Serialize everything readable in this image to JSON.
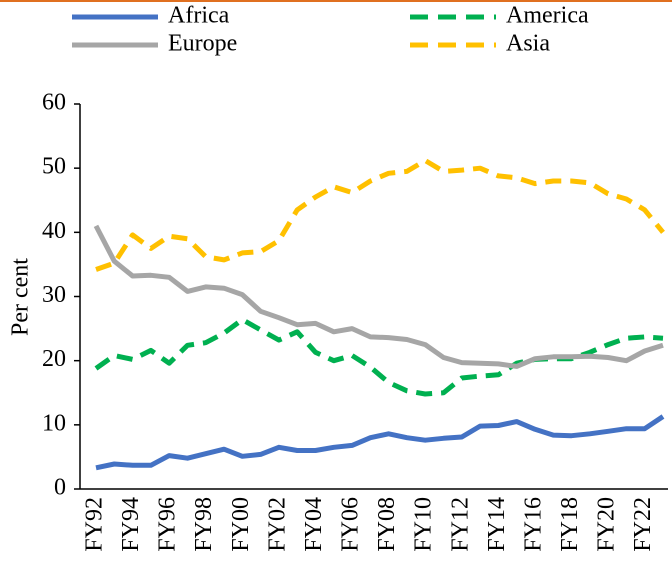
{
  "chart_data": {
    "type": "line",
    "y_label": "Per cent",
    "categories": [
      "FY92",
      null,
      "FY94",
      null,
      "FY96",
      null,
      "FY98",
      null,
      "FY00",
      null,
      "FY02",
      null,
      "FY04",
      null,
      "FY06",
      null,
      "FY08",
      null,
      "FY10",
      null,
      "FY12",
      null,
      "FY14",
      null,
      "FY16",
      null,
      "FY18",
      null,
      "FY20",
      null,
      "FY22",
      null
    ],
    "ylim": [
      0,
      60
    ],
    "yticks": [
      0,
      10,
      20,
      30,
      40,
      50,
      60
    ],
    "series": [
      {
        "name": "Africa",
        "color": "#4472c4",
        "dashed": false,
        "values": [
          3.3,
          3.9,
          3.7,
          3.7,
          5.2,
          4.8,
          5.5,
          6.2,
          5.1,
          5.4,
          6.5,
          6.0,
          6.0,
          6.5,
          6.8,
          8.0,
          8.6,
          8.0,
          7.6,
          7.9,
          8.1,
          9.8,
          9.9,
          10.5,
          9.3,
          8.4,
          8.3,
          8.6,
          9.0,
          9.4,
          9.4,
          11.3
        ]
      },
      {
        "name": "America",
        "color": "#00b050",
        "dashed": true,
        "values": [
          18.8,
          20.8,
          20.2,
          21.6,
          19.6,
          22.4,
          22.8,
          24.3,
          26.4,
          24.8,
          23.2,
          24.5,
          21.3,
          20.0,
          20.8,
          19.0,
          16.6,
          15.3,
          14.8,
          15.0,
          17.3,
          17.6,
          17.8,
          19.6,
          20.2,
          20.3,
          20.3,
          21.3,
          22.5,
          23.5,
          23.7,
          23.5
        ]
      },
      {
        "name": "Europe",
        "color": "#a6a6a6",
        "dashed": false,
        "values": [
          41.0,
          35.5,
          33.2,
          33.3,
          33.0,
          30.8,
          31.5,
          31.3,
          30.3,
          27.7,
          26.7,
          25.6,
          25.8,
          24.5,
          25.0,
          23.7,
          23.6,
          23.3,
          22.5,
          20.5,
          19.7,
          19.6,
          19.5,
          19.1,
          20.3,
          20.6,
          20.6,
          20.7,
          20.5,
          20.0,
          21.5,
          22.4
        ]
      },
      {
        "name": "Asia",
        "color": "#ffc000",
        "dashed": true,
        "values": [
          34.2,
          35.2,
          39.6,
          37.5,
          39.4,
          39.0,
          36.2,
          35.7,
          36.8,
          37.0,
          38.7,
          43.5,
          45.5,
          47.1,
          46.2,
          48.0,
          49.2,
          49.5,
          51.2,
          49.5,
          49.7,
          50.0,
          48.8,
          48.5,
          47.6,
          48.0,
          48.0,
          47.7,
          46.0,
          45.2,
          43.5,
          40.0
        ]
      }
    ]
  }
}
